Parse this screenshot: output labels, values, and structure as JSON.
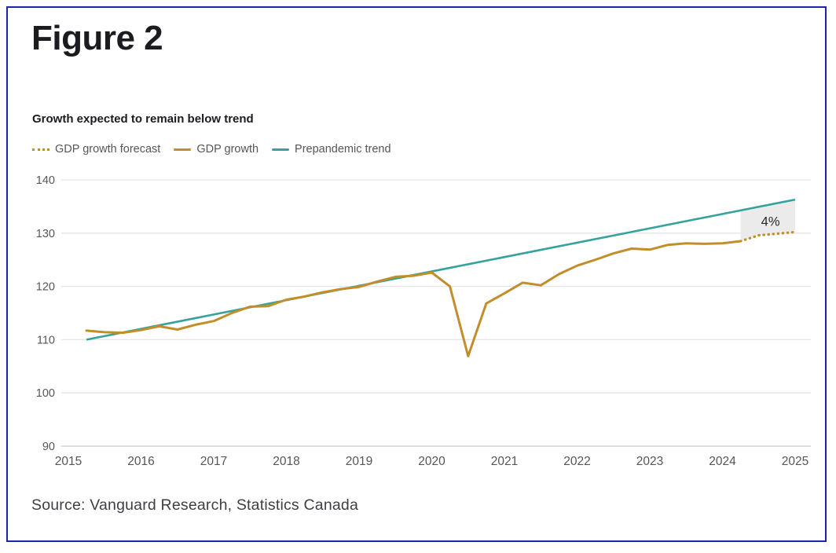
{
  "figure": {
    "title": "Figure 2",
    "subtitle": "Growth expected to remain below trend",
    "source": "Source: Vanguard Research, Statistics Canada"
  },
  "legend": {
    "items": [
      {
        "label": "GDP growth forecast",
        "swatch": "dotted-gold"
      },
      {
        "label": "GDP growth",
        "swatch": "solid-gold"
      },
      {
        "label": "Prepandemic trend",
        "swatch": "solid-teal"
      }
    ]
  },
  "colors": {
    "gold": "#c28e2c",
    "teal": "#35a29d",
    "ink": "#1b1b20",
    "axis_text": "#55565b",
    "grid": "#e6e6e8",
    "axis_line": "#c9c9cc",
    "gap_fill": "#ebebeb",
    "annotation_text": "#28282d",
    "source_text": "#3e3e45",
    "border": "#1e22ad"
  },
  "chart_data": {
    "type": "line",
    "title": "Growth expected to remain below trend",
    "xlabel": "",
    "ylabel": "",
    "xlim": [
      2015,
      2025
    ],
    "ylim": [
      90,
      140
    ],
    "x_ticks": [
      2015,
      2016,
      2017,
      2018,
      2019,
      2020,
      2021,
      2022,
      2023,
      2024,
      2025
    ],
    "y_ticks": [
      90,
      100,
      110,
      120,
      130,
      140
    ],
    "grid": "horizontal",
    "legend_position": "top-left",
    "series": [
      {
        "name": "GDP growth",
        "color": "gold",
        "style": "solid",
        "x": [
          2015.25,
          2015.5,
          2015.75,
          2016.0,
          2016.25,
          2016.5,
          2016.75,
          2017.0,
          2017.25,
          2017.5,
          2017.75,
          2018.0,
          2018.25,
          2018.5,
          2018.75,
          2019.0,
          2019.25,
          2019.5,
          2019.75,
          2020.0,
          2020.25,
          2020.5,
          2020.75,
          2021.0,
          2021.25,
          2021.5,
          2021.75,
          2022.0,
          2022.25,
          2022.5,
          2022.75,
          2023.0,
          2023.25,
          2023.5,
          2023.75,
          2024.0,
          2024.25
        ],
        "values": [
          111.7,
          111.4,
          111.3,
          111.8,
          112.5,
          111.9,
          112.8,
          113.5,
          115.0,
          116.2,
          116.3,
          117.5,
          118.1,
          118.9,
          119.5,
          119.9,
          120.9,
          121.8,
          122.0,
          122.6,
          120.0,
          106.9,
          116.8,
          118.7,
          120.7,
          120.2,
          122.3,
          123.9,
          125.0,
          126.2,
          127.1,
          126.9,
          127.8,
          128.1,
          128.0,
          128.1,
          128.5
        ]
      },
      {
        "name": "GDP growth forecast",
        "color": "gold",
        "style": "dotted",
        "x": [
          2024.25,
          2024.5,
          2024.75,
          2025.0
        ],
        "values": [
          128.5,
          129.6,
          129.9,
          130.2
        ]
      },
      {
        "name": "Prepandemic trend",
        "color": "teal",
        "style": "solid",
        "x": [
          2015.25,
          2025.0
        ],
        "values": [
          110.0,
          136.3
        ]
      }
    ],
    "annotation": {
      "text": "4%",
      "x": 2024.66,
      "y": 132.2
    },
    "gap_region": {
      "from_x": 2024.25,
      "to_x": 2025.0,
      "upper_series": "Prepandemic trend",
      "lower_series": "GDP growth forecast"
    }
  }
}
